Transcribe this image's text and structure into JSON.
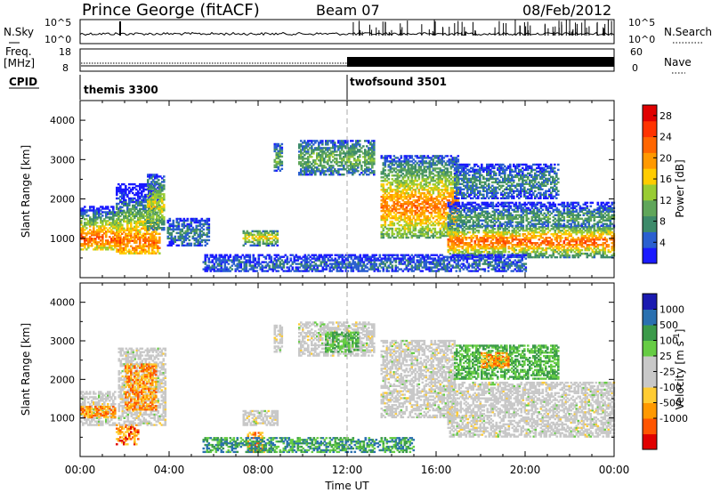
{
  "header": {
    "station": "Prince George (fitACF)",
    "beam": "Beam 07",
    "date": "08/Feb/2012"
  },
  "side_labels": {
    "nsky": "N.Sky",
    "freq_line1": "Freq.",
    "freq_line2": "[MHz]",
    "cpid": "CPID",
    "nsearch": "N.Search",
    "nave": "Nave"
  },
  "top_panels": {
    "nsky_ticks": [
      "10^5",
      "10^0"
    ],
    "nsearch_ticks": [
      "10^5",
      "10^0"
    ],
    "freq_ticks": [
      "18",
      "8"
    ],
    "nave_ticks": [
      "60",
      "0"
    ]
  },
  "cpid": {
    "programs": [
      {
        "name": "themis 3300",
        "start_hour": 0,
        "end_hour": 12
      },
      {
        "name": "twofsound 3501",
        "start_hour": 12,
        "end_hour": 24
      }
    ]
  },
  "colors": {
    "power_scale": [
      "#1a1aff",
      "#2a5fd0",
      "#3c8a6a",
      "#5fa65a",
      "#99cc33",
      "#ffcc00",
      "#ff9900",
      "#ff6600",
      "#ff3300",
      "#e00000"
    ],
    "velocity_scale": [
      "#e00000",
      "#ff5500",
      "#ff9900",
      "#ffcc33",
      "#c8c8c8",
      "#c8c8c8",
      "#66cc44",
      "#3b9a4a",
      "#2a70b0",
      "#1a1ab0"
    ],
    "ground_scatter": "#c8c8c8",
    "marker_line": "#aaaaaa"
  },
  "chart_data": [
    {
      "type": "heatmap",
      "name": "power",
      "ylabel": "Slant Range [km]",
      "xlabel": "Time UT",
      "x_ticks": [
        "00:00",
        "04:00",
        "08:00",
        "12:00",
        "16:00",
        "20:00",
        "00:00"
      ],
      "x_range_hours": [
        0,
        24
      ],
      "ylim": [
        0,
        4500
      ],
      "y_ticks": [
        1000,
        2000,
        3000,
        4000
      ],
      "colorbar_label": "Power [dB]",
      "colorbar_ticks": [
        "28",
        "24",
        "20",
        "16",
        "12",
        "8",
        "4"
      ],
      "colorbar_range": [
        0,
        30
      ],
      "vertical_marker_hour": 12,
      "regions": [
        {
          "t0": 0.0,
          "t1": 1.8,
          "r0": 700,
          "r1": 1800,
          "peak_r": 1000,
          "level": 24
        },
        {
          "t0": 1.6,
          "t1": 3.6,
          "r0": 600,
          "r1": 2400,
          "peak_r": 900,
          "level": 22
        },
        {
          "t0": 3.0,
          "t1": 3.8,
          "r0": 1200,
          "r1": 2600,
          "peak_r": 1800,
          "level": 16
        },
        {
          "t0": 3.9,
          "t1": 5.8,
          "r0": 800,
          "r1": 1500,
          "peak_r": 1100,
          "level": 8
        },
        {
          "t0": 7.3,
          "t1": 8.9,
          "r0": 800,
          "r1": 1200,
          "peak_r": 1000,
          "level": 18
        },
        {
          "t0": 8.7,
          "t1": 9.1,
          "r0": 2700,
          "r1": 3400,
          "peak_r": 3000,
          "level": 12
        },
        {
          "t0": 9.8,
          "t1": 13.2,
          "r0": 2600,
          "r1": 3500,
          "peak_r": 3000,
          "level": 12
        },
        {
          "t0": 13.5,
          "t1": 17.0,
          "r0": 1000,
          "r1": 3100,
          "peak_r": 1800,
          "level": 22
        },
        {
          "t0": 16.5,
          "t1": 24.0,
          "r0": 500,
          "r1": 1300,
          "peak_r": 900,
          "level": 24
        },
        {
          "t0": 16.5,
          "t1": 24.0,
          "r0": 1300,
          "r1": 1900,
          "peak_r": 1500,
          "level": 10
        },
        {
          "t0": 16.8,
          "t1": 21.5,
          "r0": 2000,
          "r1": 2900,
          "peak_r": 2400,
          "level": 8
        },
        {
          "t0": 5.5,
          "t1": 20.0,
          "r0": 150,
          "r1": 600,
          "peak_r": 300,
          "level": 6
        }
      ]
    },
    {
      "type": "heatmap",
      "name": "velocity",
      "ylabel": "Slant Range [km]",
      "xlabel": "Time UT",
      "x_ticks": [
        "00:00",
        "04:00",
        "08:00",
        "12:00",
        "16:00",
        "20:00",
        "00:00"
      ],
      "x_range_hours": [
        0,
        24
      ],
      "ylim": [
        0,
        4500
      ],
      "y_ticks": [
        1000,
        2000,
        3000,
        4000
      ],
      "colorbar_label": "Velocity [m s^-1]",
      "colorbar_ticks": [
        "1000",
        "500",
        "100",
        "25",
        "-25",
        "-100",
        "-500",
        "-1000"
      ],
      "vertical_marker_hour": 12,
      "regions": [
        {
          "t0": 0.0,
          "t1": 1.6,
          "r0": 800,
          "r1": 1700,
          "v": 0
        },
        {
          "t0": 0.0,
          "t1": 1.6,
          "r0": 1000,
          "r1": 1300,
          "v": -150
        },
        {
          "t0": 1.6,
          "t1": 2.6,
          "r0": 300,
          "r1": 800,
          "v": -400
        },
        {
          "t0": 1.7,
          "t1": 3.8,
          "r0": 800,
          "r1": 2800,
          "v": 0
        },
        {
          "t0": 2.0,
          "t1": 3.4,
          "r0": 1200,
          "r1": 2400,
          "v": -100
        },
        {
          "t0": 7.3,
          "t1": 8.9,
          "r0": 800,
          "r1": 1200,
          "v": 0
        },
        {
          "t0": 7.5,
          "t1": 8.3,
          "r0": 100,
          "r1": 600,
          "v": -200
        },
        {
          "t0": 8.7,
          "t1": 9.1,
          "r0": 2700,
          "r1": 3400,
          "v": 0
        },
        {
          "t0": 9.8,
          "t1": 13.2,
          "r0": 2600,
          "r1": 3500,
          "v": 0
        },
        {
          "t0": 11.0,
          "t1": 12.5,
          "r0": 2700,
          "r1": 3200,
          "v": 80
        },
        {
          "t0": 13.5,
          "t1": 16.8,
          "r0": 1000,
          "r1": 3000,
          "v": 0
        },
        {
          "t0": 16.5,
          "t1": 24.0,
          "r0": 500,
          "r1": 1900,
          "v": 0
        },
        {
          "t0": 16.8,
          "t1": 21.5,
          "r0": 2000,
          "r1": 2900,
          "v": 60
        },
        {
          "t0": 18.0,
          "t1": 19.2,
          "r0": 2300,
          "r1": 2700,
          "v": -150
        },
        {
          "t0": 5.5,
          "t1": 15.0,
          "r0": 100,
          "r1": 500,
          "v": 150
        }
      ]
    }
  ]
}
